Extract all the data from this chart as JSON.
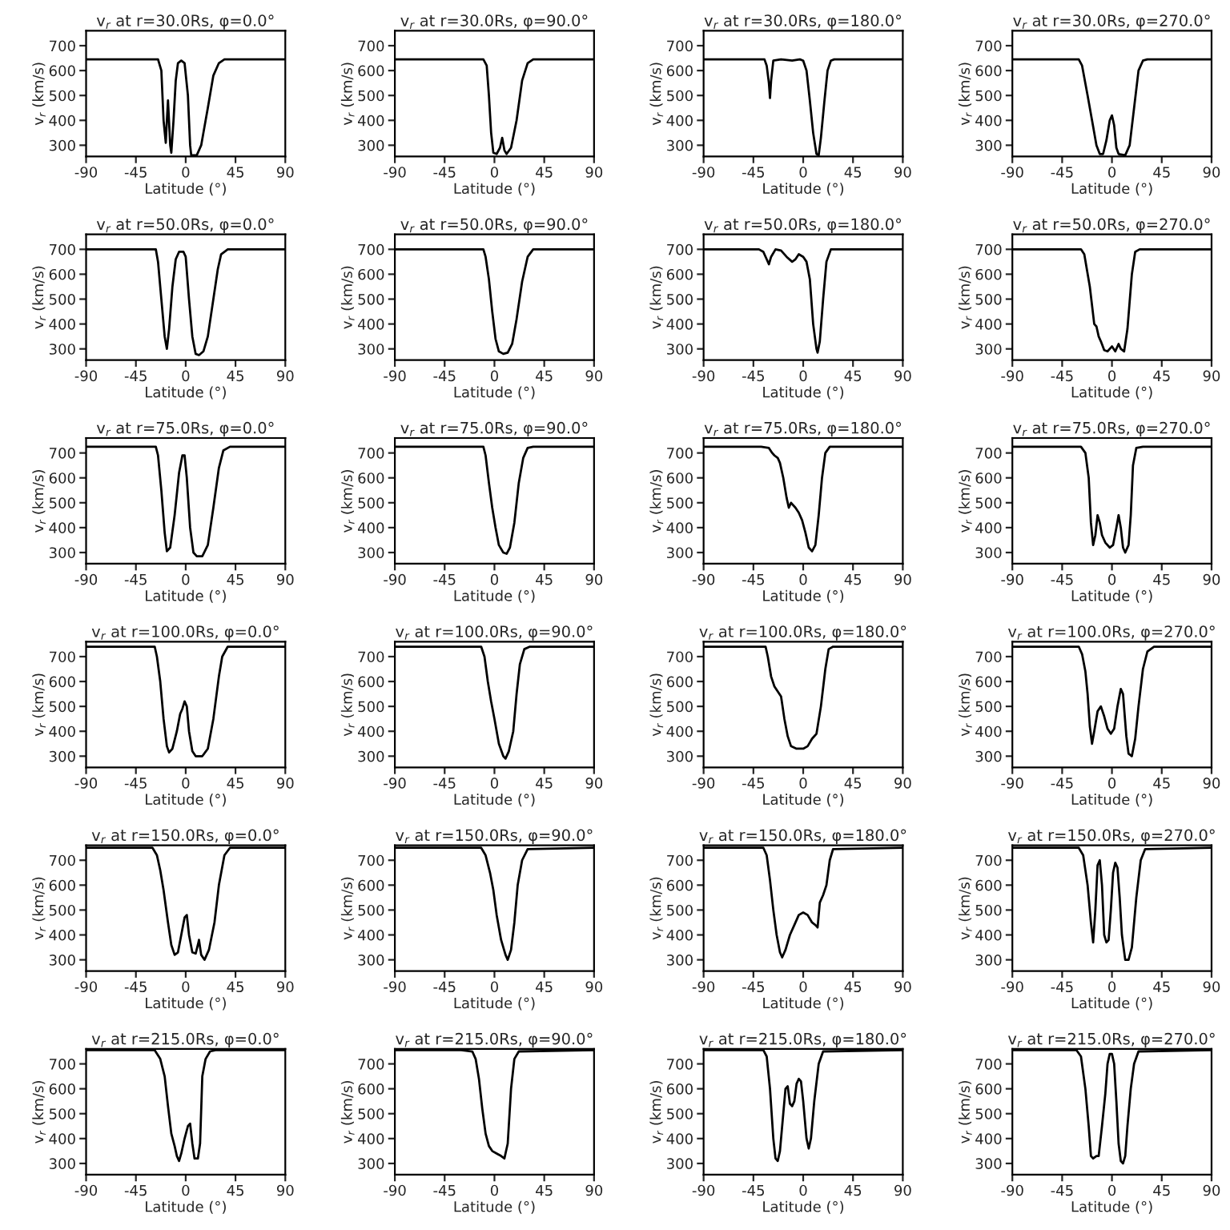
{
  "chart_data": [
    {
      "type": "line",
      "title": "v$_{r}$ at r=30.0Rs, φ=0.0°",
      "xlabel": "Latitude (°)",
      "ylabel": "v$_{r}$ (km/s)",
      "xlim": [
        -90,
        90
      ],
      "xticks": [
        -90,
        -45,
        0,
        45,
        90
      ],
      "ylim": [
        255,
        760
      ],
      "yticks": [
        300,
        400,
        500,
        600,
        700
      ],
      "x": [
        -90,
        -25,
        -22,
        -20,
        -18,
        -17,
        -16,
        -14,
        -13,
        -11,
        -9,
        -7,
        -4,
        -1,
        2,
        4,
        5,
        10,
        14,
        20,
        25,
        30,
        35,
        90
      ],
      "series": [
        {
          "color": "#000000",
          "values": [
            645,
            645,
            600,
            400,
            310,
            400,
            480,
            300,
            270,
            400,
            560,
            630,
            640,
            630,
            500,
            300,
            260,
            260,
            300,
            450,
            580,
            630,
            645,
            645
          ]
        }
      ]
    },
    {
      "type": "line",
      "title": "v$_{r}$ at r=30.0Rs, φ=90.0°",
      "xlabel": "Latitude (°)",
      "ylabel": "v$_{r}$ (km/s)",
      "xlim": [
        -90,
        90
      ],
      "xticks": [
        -90,
        -45,
        0,
        45,
        90
      ],
      "ylim": [
        255,
        760
      ],
      "yticks": [
        300,
        400,
        500,
        600,
        700
      ],
      "x": [
        -90,
        -10,
        -7,
        -5,
        -3,
        -1,
        2,
        5,
        7,
        9,
        11,
        15,
        20,
        25,
        30,
        35,
        90
      ],
      "series": [
        {
          "color": "#000000",
          "values": [
            645,
            645,
            620,
            500,
            350,
            270,
            265,
            290,
            330,
            280,
            265,
            290,
            400,
            560,
            630,
            645,
            645
          ]
        }
      ]
    },
    {
      "type": "line",
      "title": "v$_{r}$ at r=30.0Rs, φ=180.0°",
      "xlabel": "Latitude (°)",
      "ylabel": "v$_{r}$ (km/s)",
      "xlim": [
        -90,
        90
      ],
      "xticks": [
        -90,
        -45,
        0,
        45,
        90
      ],
      "ylim": [
        255,
        760
      ],
      "yticks": [
        300,
        400,
        500,
        600,
        700
      ],
      "x": [
        -90,
        -35,
        -33,
        -31,
        -30,
        -29,
        -27,
        -20,
        -10,
        -3,
        0,
        3,
        6,
        9,
        12,
        14,
        16,
        19,
        22,
        25,
        28,
        90
      ],
      "series": [
        {
          "color": "#000000",
          "values": [
            645,
            645,
            620,
            550,
            490,
            560,
            640,
            645,
            640,
            645,
            640,
            600,
            480,
            350,
            265,
            260,
            330,
            470,
            600,
            640,
            645,
            645
          ]
        }
      ]
    },
    {
      "type": "line",
      "title": "v$_{r}$ at r=30.0Rs, φ=270.0°",
      "xlabel": "Latitude (°)",
      "ylabel": "v$_{r}$ (km/s)",
      "xlim": [
        -90,
        90
      ],
      "xticks": [
        -90,
        -45,
        0,
        45,
        90
      ],
      "ylim": [
        255,
        760
      ],
      "yticks": [
        300,
        400,
        500,
        600,
        700
      ],
      "x": [
        -90,
        -30,
        -27,
        -22,
        -18,
        -14,
        -11,
        -8,
        -5,
        -2,
        0,
        2,
        4,
        6,
        12,
        16,
        20,
        24,
        28,
        32,
        90
      ],
      "series": [
        {
          "color": "#000000",
          "values": [
            645,
            645,
            620,
            500,
            400,
            300,
            265,
            265,
            320,
            400,
            420,
            380,
            290,
            265,
            260,
            300,
            450,
            600,
            640,
            645,
            645
          ]
        }
      ]
    },
    {
      "type": "line",
      "title": "v$_{r}$ at r=50.0Rs, φ=0.0°",
      "xlabel": "Latitude (°)",
      "ylabel": "v$_{r}$ (km/s)",
      "xlim": [
        -90,
        90
      ],
      "xticks": [
        -90,
        -45,
        0,
        45,
        90
      ],
      "ylim": [
        255,
        760
      ],
      "yticks": [
        300,
        400,
        500,
        600,
        700
      ],
      "x": [
        -90,
        -27,
        -25,
        -22,
        -19,
        -17,
        -15,
        -12,
        -9,
        -6,
        -2,
        0,
        3,
        6,
        9,
        12,
        16,
        20,
        25,
        29,
        32,
        38,
        90
      ],
      "series": [
        {
          "color": "#000000",
          "values": [
            700,
            700,
            650,
            500,
            350,
            300,
            380,
            550,
            660,
            690,
            690,
            670,
            500,
            350,
            280,
            275,
            290,
            350,
            500,
            620,
            680,
            700,
            700
          ]
        }
      ]
    },
    {
      "type": "line",
      "title": "v$_{r}$ at r=50.0Rs, φ=90.0°",
      "xlabel": "Latitude (°)",
      "ylabel": "v$_{r}$ (km/s)",
      "xlim": [
        -90,
        90
      ],
      "xticks": [
        -90,
        -45,
        0,
        45,
        90
      ],
      "ylim": [
        255,
        760
      ],
      "yticks": [
        300,
        400,
        500,
        600,
        700
      ],
      "x": [
        -90,
        -10,
        -8,
        -5,
        -2,
        1,
        4,
        8,
        12,
        16,
        20,
        25,
        30,
        35,
        90
      ],
      "series": [
        {
          "color": "#000000",
          "values": [
            700,
            700,
            670,
            580,
            450,
            340,
            290,
            280,
            285,
            320,
            420,
            570,
            670,
            700,
            700
          ]
        }
      ]
    },
    {
      "type": "line",
      "title": "v$_{r}$ at r=50.0Rs, φ=180.0°",
      "xlabel": "Latitude (°)",
      "ylabel": "v$_{r}$ (km/s)",
      "xlim": [
        -90,
        90
      ],
      "xticks": [
        -90,
        -45,
        0,
        45,
        90
      ],
      "ylim": [
        255,
        760
      ],
      "yticks": [
        300,
        400,
        500,
        600,
        700
      ],
      "x": [
        -90,
        -40,
        -36,
        -33,
        -31,
        -29,
        -25,
        -20,
        -15,
        -10,
        -7,
        -4,
        0,
        3,
        6,
        9,
        12,
        13,
        15,
        18,
        21,
        25,
        90
      ],
      "series": [
        {
          "color": "#000000",
          "values": [
            700,
            700,
            690,
            660,
            640,
            670,
            700,
            695,
            670,
            650,
            660,
            680,
            670,
            650,
            580,
            400,
            300,
            285,
            330,
            500,
            650,
            700,
            700
          ]
        }
      ]
    },
    {
      "type": "line",
      "title": "v$_{r}$ at r=50.0Rs, φ=270.0°",
      "xlabel": "Latitude (°)",
      "ylabel": "v$_{r}$ (km/s)",
      "xlim": [
        -90,
        90
      ],
      "xticks": [
        -90,
        -45,
        0,
        45,
        90
      ],
      "ylim": [
        255,
        760
      ],
      "yticks": [
        300,
        400,
        500,
        600,
        700
      ],
      "x": [
        -90,
        -28,
        -25,
        -20,
        -16,
        -14,
        -12,
        -10,
        -7,
        -4,
        0,
        3,
        6,
        8,
        11,
        14,
        18,
        21,
        25,
        90
      ],
      "series": [
        {
          "color": "#000000",
          "values": [
            700,
            700,
            680,
            550,
            400,
            390,
            350,
            330,
            295,
            290,
            310,
            290,
            320,
            300,
            290,
            380,
            600,
            690,
            700,
            700
          ]
        }
      ]
    },
    {
      "type": "line",
      "title": "v$_{r}$ at r=75.0Rs, φ=0.0°",
      "xlabel": "Latitude (°)",
      "ylabel": "v$_{r}$ (km/s)",
      "xlim": [
        -90,
        90
      ],
      "xticks": [
        -90,
        -45,
        0,
        45,
        90
      ],
      "ylim": [
        255,
        760
      ],
      "yticks": [
        300,
        400,
        500,
        600,
        700
      ],
      "x": [
        -90,
        -27,
        -25,
        -22,
        -19,
        -17,
        -14,
        -10,
        -6,
        -3,
        -1,
        1,
        4,
        7,
        10,
        15,
        20,
        25,
        30,
        34,
        40,
        90
      ],
      "series": [
        {
          "color": "#000000",
          "values": [
            725,
            725,
            690,
            550,
            380,
            305,
            320,
            450,
            620,
            690,
            690,
            600,
            400,
            300,
            285,
            285,
            330,
            480,
            640,
            710,
            725,
            725
          ]
        }
      ]
    },
    {
      "type": "line",
      "title": "v$_{r}$ at r=75.0Rs, φ=90.0°",
      "xlabel": "Latitude (°)",
      "ylabel": "v$_{r}$ (km/s)",
      "xlim": [
        -90,
        90
      ],
      "xticks": [
        -90,
        -45,
        0,
        45,
        90
      ],
      "ylim": [
        255,
        760
      ],
      "yticks": [
        300,
        400,
        500,
        600,
        700
      ],
      "x": [
        -90,
        -10,
        -8,
        -5,
        -2,
        1,
        4,
        8,
        11,
        14,
        18,
        22,
        26,
        30,
        35,
        90
      ],
      "series": [
        {
          "color": "#000000",
          "values": [
            725,
            725,
            690,
            580,
            480,
            400,
            330,
            300,
            295,
            320,
            420,
            580,
            680,
            720,
            725,
            725
          ]
        }
      ]
    },
    {
      "type": "line",
      "title": "v$_{r}$ at r=75.0Rs, φ=180.0°",
      "xlabel": "Latitude (°)",
      "ylabel": "v$_{r}$ (km/s)",
      "xlim": [
        -90,
        90
      ],
      "xticks": [
        -90,
        -45,
        0,
        45,
        90
      ],
      "ylim": [
        255,
        760
      ],
      "yticks": [
        300,
        400,
        500,
        600,
        700
      ],
      "x": [
        -90,
        -38,
        -31,
        -28,
        -26,
        -23,
        -21,
        -18,
        -15,
        -13,
        -11,
        -7,
        -4,
        -1,
        2,
        5,
        8,
        11,
        14,
        17,
        20,
        24,
        90
      ],
      "series": [
        {
          "color": "#000000",
          "values": [
            725,
            725,
            720,
            700,
            690,
            680,
            660,
            600,
            520,
            480,
            500,
            480,
            460,
            430,
            380,
            320,
            305,
            330,
            450,
            600,
            700,
            725,
            725
          ]
        }
      ]
    },
    {
      "type": "line",
      "title": "v$_{r}$ at r=75.0Rs, φ=270.0°",
      "xlabel": "Latitude (°)",
      "ylabel": "v$_{r}$ (km/s)",
      "xlim": [
        -90,
        90
      ],
      "xticks": [
        -90,
        -45,
        0,
        45,
        90
      ],
      "ylim": [
        255,
        760
      ],
      "yticks": [
        300,
        400,
        500,
        600,
        700
      ],
      "x": [
        -90,
        -28,
        -24,
        -21,
        -19,
        -17,
        -15,
        -13,
        -11,
        -9,
        -6,
        -2,
        1,
        4,
        6,
        8,
        10,
        12,
        15,
        17,
        19,
        22,
        28,
        90
      ],
      "series": [
        {
          "color": "#000000",
          "values": [
            725,
            725,
            700,
            600,
            420,
            330,
            370,
            450,
            420,
            370,
            340,
            320,
            330,
            400,
            450,
            400,
            320,
            300,
            330,
            450,
            650,
            720,
            725,
            725
          ]
        }
      ]
    },
    {
      "type": "line",
      "title": "v$_{r}$ at r=100.0Rs, φ=0.0°",
      "xlabel": "Latitude (°)",
      "ylabel": "v$_{r}$ (km/s)",
      "xlim": [
        -90,
        90
      ],
      "xticks": [
        -90,
        -45,
        0,
        45,
        90
      ],
      "ylim": [
        255,
        760
      ],
      "yticks": [
        300,
        400,
        500,
        600,
        700
      ],
      "x": [
        -90,
        -28,
        -26,
        -23,
        -20,
        -17,
        -15,
        -12,
        -8,
        -5,
        -3,
        -1,
        1,
        3,
        6,
        9,
        15,
        20,
        25,
        30,
        33,
        38,
        90
      ],
      "series": [
        {
          "color": "#000000",
          "values": [
            740,
            740,
            700,
            600,
            450,
            340,
            315,
            330,
            400,
            470,
            490,
            520,
            500,
            400,
            320,
            300,
            300,
            330,
            450,
            620,
            700,
            740,
            740
          ]
        }
      ]
    },
    {
      "type": "line",
      "title": "v$_{r}$ at r=100.0Rs, φ=90.0°",
      "xlabel": "Latitude (°)",
      "ylabel": "v$_{r}$ (km/s)",
      "xlim": [
        -90,
        90
      ],
      "xticks": [
        -90,
        -45,
        0,
        45,
        90
      ],
      "ylim": [
        255,
        760
      ],
      "yticks": [
        300,
        400,
        500,
        600,
        700
      ],
      "x": [
        -90,
        -12,
        -9,
        -6,
        -3,
        0,
        4,
        8,
        10,
        13,
        17,
        20,
        23,
        27,
        32,
        90
      ],
      "series": [
        {
          "color": "#000000",
          "values": [
            740,
            740,
            700,
            600,
            520,
            450,
            350,
            300,
            290,
            320,
            400,
            550,
            670,
            730,
            740,
            740
          ]
        }
      ]
    },
    {
      "type": "line",
      "title": "v$_{r}$ at r=100.0Rs, φ=180.0°",
      "xlabel": "Latitude (°)",
      "ylabel": "v$_{r}$ (km/s)",
      "xlim": [
        -90,
        90
      ],
      "xticks": [
        -90,
        -45,
        0,
        45,
        90
      ],
      "ylim": [
        255,
        760
      ],
      "yticks": [
        300,
        400,
        500,
        600,
        700
      ],
      "x": [
        -90,
        -34,
        -32,
        -29,
        -26,
        -23,
        -20,
        -17,
        -14,
        -11,
        -6,
        0,
        4,
        8,
        12,
        16,
        20,
        23,
        27,
        90
      ],
      "series": [
        {
          "color": "#000000",
          "values": [
            740,
            740,
            700,
            620,
            580,
            560,
            540,
            450,
            380,
            340,
            330,
            330,
            340,
            370,
            390,
            500,
            650,
            730,
            740,
            740
          ]
        }
      ]
    },
    {
      "type": "line",
      "title": "v$_{r}$ at r=100.0Rs, φ=270.0°",
      "xlabel": "Latitude (°)",
      "ylabel": "v$_{r}$ (km/s)",
      "xlim": [
        -90,
        90
      ],
      "xticks": [
        -90,
        -45,
        0,
        45,
        90
      ],
      "ylim": [
        255,
        760
      ],
      "yticks": [
        300,
        400,
        500,
        600,
        700
      ],
      "x": [
        -90,
        -30,
        -27,
        -24,
        -22,
        -20,
        -18,
        -16,
        -13,
        -10,
        -7,
        -4,
        -1,
        2,
        5,
        8,
        10,
        13,
        15,
        18,
        21,
        24,
        28,
        32,
        38,
        90
      ],
      "series": [
        {
          "color": "#000000",
          "values": [
            740,
            740,
            710,
            640,
            550,
            420,
            350,
            400,
            480,
            500,
            460,
            410,
            390,
            410,
            500,
            570,
            550,
            380,
            310,
            300,
            370,
            500,
            650,
            720,
            740,
            740
          ]
        }
      ]
    },
    {
      "type": "line",
      "title": "v$_{r}$ at r=150.0Rs, φ=0.0°",
      "xlabel": "Latitude (°)",
      "ylabel": "v$_{r}$ (km/s)",
      "xlim": [
        -90,
        90
      ],
      "xticks": [
        -90,
        -45,
        0,
        45,
        90
      ],
      "ylim": [
        255,
        760
      ],
      "yticks": [
        300,
        400,
        500,
        600,
        700
      ],
      "x": [
        -90,
        -30,
        -26,
        -23,
        -20,
        -16,
        -13,
        -10,
        -7,
        -4,
        -1,
        1,
        3,
        6,
        9,
        11,
        12,
        14,
        17,
        21,
        26,
        30,
        35,
        40,
        90
      ],
      "series": [
        {
          "color": "#000000",
          "values": [
            750,
            750,
            720,
            660,
            580,
            450,
            360,
            320,
            330,
            400,
            470,
            480,
            400,
            330,
            325,
            360,
            380,
            320,
            300,
            340,
            450,
            600,
            720,
            750,
            750
          ]
        }
      ]
    },
    {
      "type": "line",
      "title": "v$_{r}$ at r=150.0Rs, φ=90.0°",
      "xlabel": "Latitude (°)",
      "ylabel": "v$_{r}$ (km/s)",
      "xlim": [
        -90,
        90
      ],
      "xticks": [
        -90,
        -45,
        0,
        45,
        90
      ],
      "ylim": [
        255,
        760
      ],
      "yticks": [
        300,
        400,
        500,
        600,
        700
      ],
      "x": [
        -90,
        -12,
        -8,
        -4,
        -1,
        2,
        6,
        10,
        12,
        15,
        18,
        21,
        25,
        30,
        90
      ],
      "series": [
        {
          "color": "#000000",
          "values": [
            750,
            750,
            720,
            650,
            580,
            480,
            380,
            320,
            300,
            340,
            450,
            600,
            700,
            745,
            750
          ]
        }
      ]
    },
    {
      "type": "line",
      "title": "v$_{r}$ at r=150.0Rs, φ=180.0°",
      "xlabel": "Latitude (°)",
      "ylabel": "v$_{r}$ (km/s)",
      "xlim": [
        -90,
        90
      ],
      "xticks": [
        -90,
        -45,
        0,
        45,
        90
      ],
      "ylim": [
        255,
        760
      ],
      "yticks": [
        300,
        400,
        500,
        600,
        700
      ],
      "x": [
        -90,
        -36,
        -33,
        -30,
        -27,
        -24,
        -21,
        -19,
        -16,
        -12,
        -8,
        -4,
        0,
        4,
        8,
        11,
        13,
        15,
        18,
        21,
        24,
        27,
        90
      ],
      "series": [
        {
          "color": "#000000",
          "values": [
            750,
            750,
            720,
            620,
            500,
            400,
            330,
            310,
            340,
            400,
            440,
            480,
            490,
            480,
            450,
            440,
            430,
            530,
            560,
            600,
            700,
            745,
            750
          ]
        }
      ]
    },
    {
      "type": "line",
      "title": "v$_{r}$ at r=150.0Rs, φ=270.0°",
      "xlabel": "Latitude (°)",
      "ylabel": "v$_{r}$ (km/s)",
      "xlim": [
        -90,
        90
      ],
      "xticks": [
        -90,
        -45,
        0,
        45,
        90
      ],
      "ylim": [
        255,
        760
      ],
      "yticks": [
        300,
        400,
        500,
        600,
        700
      ],
      "x": [
        -90,
        -30,
        -26,
        -22,
        -19,
        -17,
        -15,
        -13,
        -11,
        -9,
        -7,
        -5,
        -3,
        -1,
        1,
        3,
        5,
        7,
        9,
        12,
        15,
        18,
        22,
        26,
        30,
        90
      ],
      "series": [
        {
          "color": "#000000",
          "values": [
            750,
            750,
            720,
            600,
            450,
            370,
            500,
            680,
            700,
            600,
            400,
            370,
            380,
            500,
            650,
            690,
            670,
            550,
            400,
            300,
            300,
            350,
            550,
            700,
            745,
            750
          ]
        }
      ]
    },
    {
      "type": "line",
      "title": "v$_{r}$ at r=215.0Rs, φ=0.0°",
      "xlabel": "Latitude (°)",
      "ylabel": "v$_{r}$ (km/s)",
      "xlim": [
        -90,
        90
      ],
      "xticks": [
        -90,
        -45,
        0,
        45,
        90
      ],
      "ylim": [
        255,
        760
      ],
      "yticks": [
        300,
        400,
        500,
        600,
        700
      ],
      "x": [
        -90,
        -28,
        -23,
        -19,
        -16,
        -13,
        -10,
        -8,
        -6,
        -4,
        -1,
        2,
        4,
        6,
        8,
        11,
        13,
        15,
        18,
        22,
        27,
        90
      ],
      "series": [
        {
          "color": "#000000",
          "values": [
            755,
            755,
            720,
            650,
            530,
            420,
            370,
            330,
            310,
            340,
            400,
            450,
            460,
            380,
            320,
            320,
            380,
            650,
            720,
            750,
            755,
            755
          ]
        }
      ]
    },
    {
      "type": "line",
      "title": "v$_{r}$ at r=215.0Rs, φ=90.0°",
      "xlabel": "Latitude (°)",
      "ylabel": "v$_{r}$ (km/s)",
      "xlim": [
        -90,
        90
      ],
      "xticks": [
        -90,
        -45,
        0,
        45,
        90
      ],
      "ylim": [
        255,
        760
      ],
      "yticks": [
        300,
        400,
        500,
        600,
        700
      ],
      "x": [
        -90,
        -30,
        -20,
        -17,
        -14,
        -11,
        -8,
        -5,
        -2,
        2,
        6,
        9,
        12,
        15,
        18,
        22,
        90
      ],
      "series": [
        {
          "color": "#000000",
          "values": [
            755,
            755,
            750,
            720,
            640,
            520,
            420,
            370,
            350,
            340,
            330,
            320,
            380,
            600,
            720,
            750,
            755
          ]
        }
      ]
    },
    {
      "type": "line",
      "title": "v$_{r}$ at r=215.0Rs, φ=180.0°",
      "xlabel": "Latitude (°)",
      "ylabel": "v$_{r}$ (km/s)",
      "xlim": [
        -90,
        90
      ],
      "xticks": [
        -90,
        -45,
        0,
        45,
        90
      ],
      "ylim": [
        255,
        760
      ],
      "yticks": [
        300,
        400,
        500,
        600,
        700
      ],
      "x": [
        -90,
        -36,
        -33,
        -30,
        -27,
        -25,
        -23,
        -21,
        -18,
        -16,
        -14,
        -12,
        -10,
        -8,
        -6,
        -4,
        -2,
        0,
        3,
        5,
        7,
        10,
        14,
        18,
        90
      ],
      "series": [
        {
          "color": "#000000",
          "values": [
            755,
            755,
            730,
            600,
            400,
            320,
            310,
            350,
            500,
            600,
            610,
            540,
            530,
            550,
            620,
            640,
            630,
            550,
            400,
            360,
            400,
            550,
            700,
            750,
            755
          ]
        }
      ]
    },
    {
      "type": "line",
      "title": "v$_{r}$ at r=215.0Rs, φ=270.0°",
      "xlabel": "Latitude (°)",
      "ylabel": "v$_{r}$ (km/s)",
      "xlim": [
        -90,
        90
      ],
      "xticks": [
        -90,
        -45,
        0,
        45,
        90
      ],
      "ylim": [
        255,
        760
      ],
      "yticks": [
        300,
        400,
        500,
        600,
        700
      ],
      "x": [
        -90,
        -32,
        -28,
        -24,
        -21,
        -19,
        -17,
        -14,
        -12,
        -9,
        -6,
        -4,
        -2,
        0,
        2,
        4,
        6,
        8,
        10,
        12,
        14,
        17,
        20,
        24,
        90
      ],
      "series": [
        {
          "color": "#000000",
          "values": [
            755,
            755,
            730,
            600,
            450,
            330,
            320,
            330,
            330,
            450,
            580,
            700,
            740,
            740,
            700,
            550,
            380,
            310,
            300,
            330,
            450,
            600,
            700,
            750,
            755
          ]
        }
      ]
    }
  ]
}
